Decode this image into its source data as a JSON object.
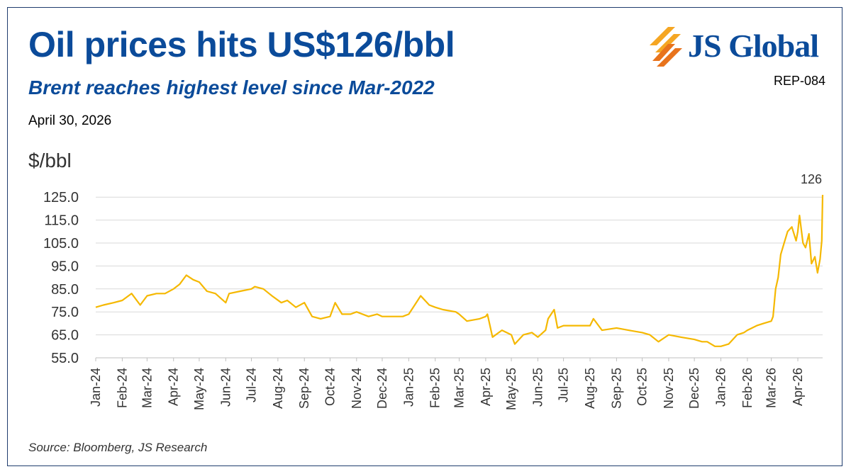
{
  "header": {
    "title": "Oil prices hits US$126/bbl",
    "subtitle": "Brent reaches highest level since Mar-2022",
    "date": "April 30, 2026",
    "report_id": "REP-084"
  },
  "logo": {
    "text": "JS Global",
    "icon": "js-global-stripes-logo",
    "colors": [
      "#f5a623",
      "#e8731c",
      "#0b4b9a"
    ]
  },
  "source": "Source: Bloomberg, JS Research",
  "colors": {
    "line": "#f5b800",
    "title": "#0b4b9a",
    "grid": "#d9d9d9",
    "border": "#1f3c6e"
  },
  "chart_data": {
    "type": "line",
    "title": "",
    "xlabel": "",
    "ylabel": "$/bbl",
    "ylim": [
      55,
      130
    ],
    "yticks": [
      "55.0",
      "65.0",
      "75.0",
      "85.0",
      "95.0",
      "105.0",
      "115.0",
      "125.0"
    ],
    "xticks": [
      "Jan-24",
      "Feb-24",
      "Mar-24",
      "Apr-24",
      "May-24",
      "Jun-24",
      "Jul-24",
      "Aug-24",
      "Sep-24",
      "Oct-24",
      "Nov-24",
      "Dec-24",
      "Jan-25",
      "Feb-25",
      "Mar-25",
      "Apr-25",
      "May-25",
      "Jun-25",
      "Jul-25",
      "Aug-25",
      "Sep-25",
      "Oct-25",
      "Nov-25",
      "Dec-25",
      "Jan-26",
      "Feb-26",
      "Mar-26",
      "Apr-26"
    ],
    "grid": true,
    "legend": "none",
    "annotation": {
      "label": "126",
      "x": "2026-04-30",
      "y": 126
    },
    "series": [
      {
        "color": "#f5b800",
        "x": [
          "2024-01-01",
          "2024-01-10",
          "2024-01-22",
          "2024-02-01",
          "2024-02-12",
          "2024-02-22",
          "2024-03-01",
          "2024-03-12",
          "2024-03-22",
          "2024-04-01",
          "2024-04-08",
          "2024-04-16",
          "2024-04-24",
          "2024-05-01",
          "2024-05-10",
          "2024-05-20",
          "2024-06-01",
          "2024-06-05",
          "2024-06-18",
          "2024-07-01",
          "2024-07-05",
          "2024-07-15",
          "2024-07-25",
          "2024-08-05",
          "2024-08-12",
          "2024-08-22",
          "2024-09-01",
          "2024-09-10",
          "2024-09-20",
          "2024-10-01",
          "2024-10-07",
          "2024-10-15",
          "2024-10-25",
          "2024-11-01",
          "2024-11-15",
          "2024-11-25",
          "2024-12-01",
          "2024-12-15",
          "2024-12-25",
          "2025-01-01",
          "2025-01-08",
          "2025-01-15",
          "2025-01-25",
          "2025-02-01",
          "2025-02-10",
          "2025-02-25",
          "2025-03-01",
          "2025-03-10",
          "2025-03-25",
          "2025-04-01",
          "2025-04-03",
          "2025-04-09",
          "2025-04-20",
          "2025-05-01",
          "2025-05-05",
          "2025-05-15",
          "2025-05-25",
          "2025-06-01",
          "2025-06-10",
          "2025-06-13",
          "2025-06-20",
          "2025-06-24",
          "2025-07-01",
          "2025-07-15",
          "2025-08-01",
          "2025-08-05",
          "2025-08-15",
          "2025-09-01",
          "2025-09-15",
          "2025-10-01",
          "2025-10-10",
          "2025-10-20",
          "2025-11-01",
          "2025-11-15",
          "2025-12-01",
          "2025-12-10",
          "2025-12-16",
          "2025-12-25",
          "2026-01-01",
          "2026-01-10",
          "2026-01-20",
          "2026-01-28",
          "2026-02-01",
          "2026-02-12",
          "2026-02-20",
          "2026-03-01",
          "2026-03-03",
          "2026-03-06",
          "2026-03-09",
          "2026-03-12",
          "2026-03-16",
          "2026-03-20",
          "2026-03-25",
          "2026-03-30",
          "2026-04-01",
          "2026-04-03",
          "2026-04-07",
          "2026-04-10",
          "2026-04-14",
          "2026-04-17",
          "2026-04-21",
          "2026-04-24",
          "2026-04-27",
          "2026-04-29",
          "2026-04-30"
        ],
        "y": [
          77,
          78,
          79,
          80,
          83,
          78,
          82,
          83,
          83,
          85,
          87,
          91,
          89,
          88,
          84,
          83,
          79,
          83,
          84,
          85,
          86,
          85,
          82,
          79,
          80,
          77,
          79,
          73,
          72,
          73,
          79,
          74,
          74,
          75,
          73,
          74,
          73,
          73,
          73,
          74,
          78,
          82,
          78,
          77,
          76,
          75,
          74,
          71,
          72,
          73,
          74,
          64,
          67,
          65,
          61,
          65,
          66,
          64,
          67,
          72,
          76,
          68,
          69,
          69,
          69,
          72,
          67,
          68,
          67,
          66,
          65,
          62,
          65,
          64,
          63,
          62,
          62,
          60,
          60,
          61,
          65,
          66,
          67,
          69,
          70,
          71,
          73,
          85,
          90,
          100,
          105,
          110,
          112,
          106,
          110,
          117,
          105,
          103,
          109,
          96,
          99,
          92,
          98,
          106,
          126
        ]
      }
    ]
  }
}
